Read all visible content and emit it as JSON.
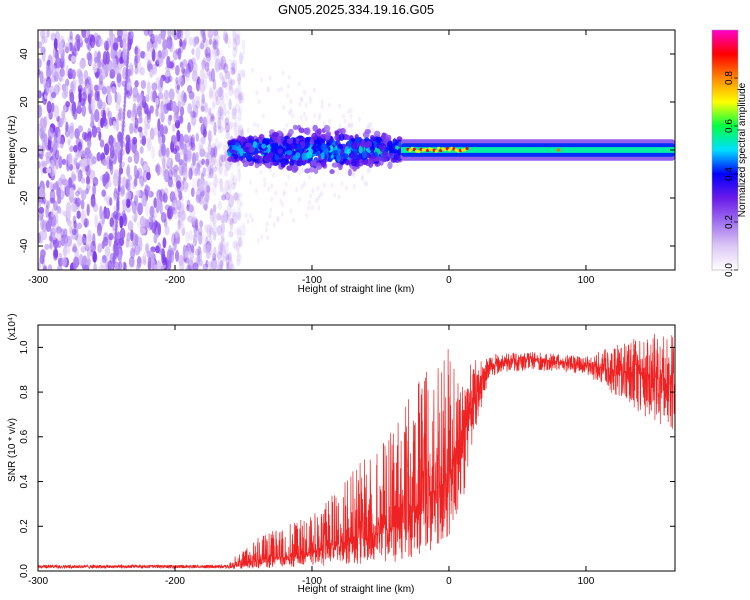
{
  "title": "GN05.2025.334.19.16.G05",
  "colors": {
    "snr_line": "#ee2222",
    "axes": "#000000",
    "background": "#ffffff"
  },
  "chart_data": [
    {
      "type": "heatmap",
      "name": "spectrogram",
      "xlabel": "Height of straight line (km)",
      "ylabel": "Frequency (Hz)",
      "xlim": [
        -300,
        165
      ],
      "ylim": [
        -50,
        50
      ],
      "xticks": [
        -300,
        -200,
        -100,
        0,
        100
      ],
      "yticks": [
        -40,
        -20,
        0,
        20,
        40
      ],
      "colorbar": {
        "label": "Normalized spectral amplitude",
        "range": [
          0,
          1
        ],
        "ticks": [
          "0.0",
          "0.2",
          "0.4",
          "0.6",
          "0.8"
        ],
        "colormap": [
          "#ffffff",
          "#dcc8f5",
          "#a070f0",
          "#6a1ae8",
          "#0000ff",
          "#00e0ff",
          "#00ff44",
          "#ffff00",
          "#ff8800",
          "#ff0000",
          "#ff00cc"
        ]
      },
      "features": {
        "noise_region_km": [
          -300,
          -160
        ],
        "scattered_band_km": [
          -160,
          -35
        ],
        "scattered_band_halfwidth_hz": 9,
        "carrier_line_km": [
          -35,
          165
        ],
        "carrier_line_halfwidth_hz": 2,
        "carrier_line_amplitude": 0.45
      }
    },
    {
      "type": "line",
      "name": "snr",
      "xlabel": "Height of straight line (km)",
      "ylabel": "SNR (10 * v/v)",
      "exponent": "(x10⁴)",
      "xlim": [
        -300,
        165
      ],
      "ylim": [
        0,
        1.1
      ],
      "xticks": [
        -300,
        -200,
        -100,
        0,
        100
      ],
      "yticks": [
        0.0,
        0.2,
        0.4,
        0.6,
        0.8,
        1.0
      ],
      "envelope": {
        "x": [
          -300,
          -200,
          -160,
          -140,
          -100,
          -70,
          -40,
          -20,
          0,
          10,
          20,
          30,
          60,
          100,
          140,
          165
        ],
        "base": [
          0.02,
          0.02,
          0.02,
          0.05,
          0.08,
          0.14,
          0.2,
          0.3,
          0.42,
          0.62,
          0.8,
          0.92,
          0.95,
          0.92,
          0.88,
          0.85
        ],
        "upper": [
          0.03,
          0.03,
          0.05,
          0.15,
          0.25,
          0.45,
          0.65,
          0.9,
          1.0,
          0.9,
          0.95,
          0.97,
          0.98,
          0.96,
          1.05,
          1.08
        ],
        "lower": [
          0.01,
          0.01,
          0.01,
          0.01,
          0.02,
          0.03,
          0.04,
          0.06,
          0.1,
          0.3,
          0.65,
          0.87,
          0.9,
          0.88,
          0.7,
          0.62
        ]
      }
    }
  ]
}
